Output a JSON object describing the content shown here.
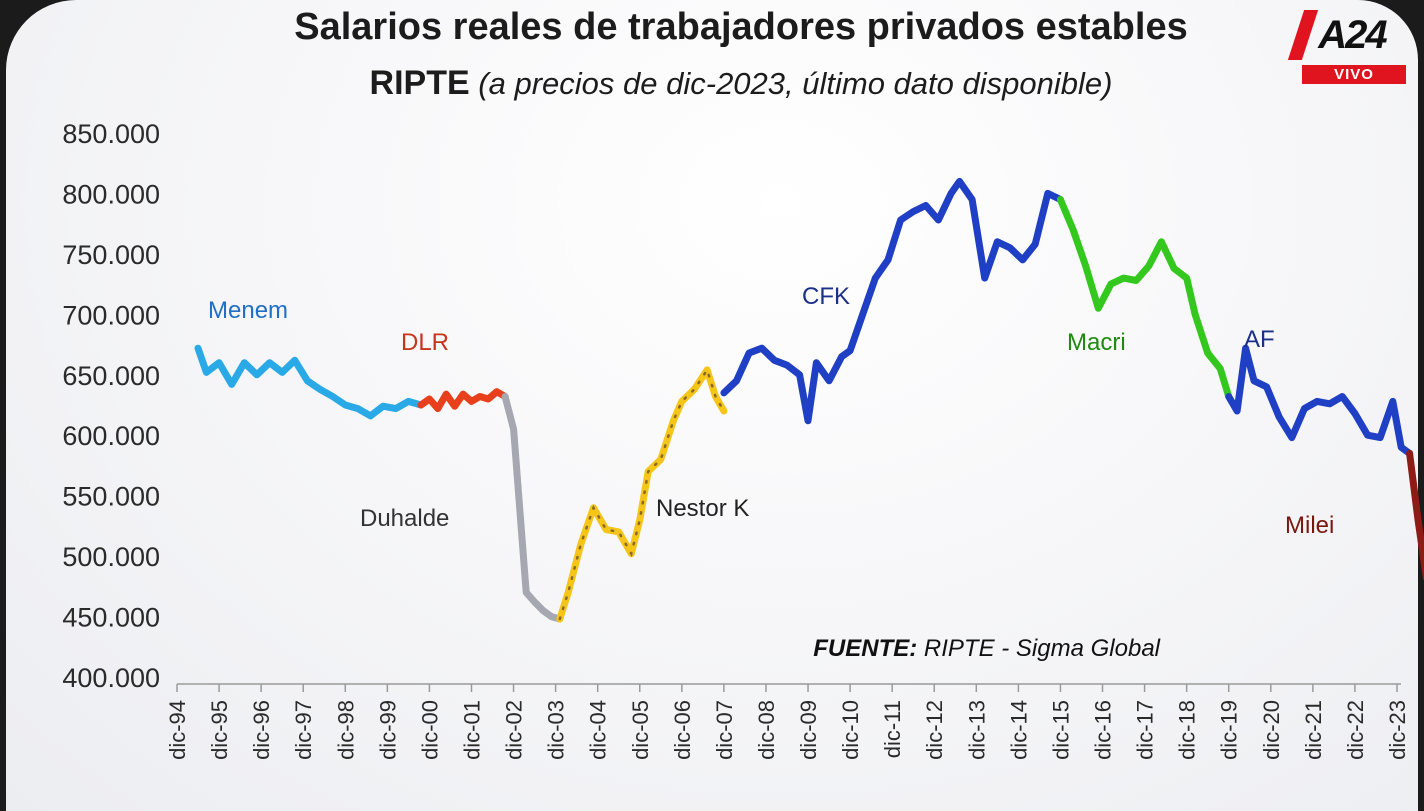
{
  "header": {
    "title": "Salarios reales de trabajadores privados estables",
    "subtitle_bold": "RIPTE",
    "subtitle_italic": "(a precios de dic-2023, último dato disponible)"
  },
  "logo": {
    "brand": "A24",
    "live_badge": "VIVO",
    "brand_color": "#e0141e"
  },
  "chart_data": {
    "type": "line",
    "title": "Salarios reales de trabajadores privados estables",
    "subtitle": "RIPTE (a precios de dic-2023, último dato disponible)",
    "source": "FUENTE: RIPTE - Sigma Global",
    "ylim": [
      400000,
      850000
    ],
    "yticks": [
      "850.000",
      "800.000",
      "750.000",
      "700.000",
      "650.000",
      "600.000",
      "550.000",
      "500.000",
      "450.000",
      "400.000"
    ],
    "ytick_values": [
      850000,
      800000,
      750000,
      700000,
      650000,
      600000,
      550000,
      500000,
      450000,
      400000
    ],
    "xlim": [
      1994,
      2023
    ],
    "xticks": [
      "dic-94",
      "dic-95",
      "dic-96",
      "dic-97",
      "dic-98",
      "dic-99",
      "dic-00",
      "dic-01",
      "dic-02",
      "dic-03",
      "dic-04",
      "dic-05",
      "dic-06",
      "dic-07",
      "dic-08",
      "dic-09",
      "dic-10",
      "dic-11",
      "dic-12",
      "dic-13",
      "dic-14",
      "dic-15",
      "dic-16",
      "dic-17",
      "dic-18",
      "dic-19",
      "dic-20",
      "dic-21",
      "dic-22",
      "dic-23"
    ],
    "grid": false,
    "series": [
      {
        "name": "Menem",
        "color": "#29a9e6",
        "style": "solid",
        "x": [
          1994.5,
          1994.7,
          1995.0,
          1995.3,
          1995.6,
          1995.9,
          1996.2,
          1996.5,
          1996.8,
          1997.1,
          1997.4,
          1997.7,
          1998.0,
          1998.3,
          1998.6,
          1998.9,
          1999.2,
          1999.5,
          1999.8
        ],
        "y": [
          672000,
          652000,
          660000,
          642000,
          660000,
          650000,
          660000,
          652000,
          662000,
          645000,
          638000,
          632000,
          625000,
          622000,
          616000,
          624000,
          622000,
          628000,
          625000
        ]
      },
      {
        "name": "DLR",
        "color": "#e8401c",
        "style": "solid",
        "x": [
          1999.8,
          2000.0,
          2000.2,
          2000.4,
          2000.6,
          2000.8,
          2001.0,
          2001.2,
          2001.4,
          2001.6,
          2001.8
        ],
        "y": [
          625000,
          630000,
          622000,
          634000,
          624000,
          634000,
          628000,
          632000,
          630000,
          636000,
          632000
        ]
      },
      {
        "name": "Duhalde",
        "color": "#a5a8b0",
        "style": "solid",
        "x": [
          2001.8,
          2002.0,
          2002.1,
          2002.2,
          2002.3,
          2002.5,
          2002.7,
          2002.9,
          2003.1
        ],
        "y": [
          632000,
          605000,
          560000,
          515000,
          470000,
          462000,
          455000,
          450000,
          448000
        ]
      },
      {
        "name": "Nestor K",
        "color": "#f5c518",
        "style": "dotted",
        "x": [
          2003.1,
          2003.3,
          2003.6,
          2003.9,
          2004.2,
          2004.5,
          2004.8,
          2005.0,
          2005.2,
          2005.5,
          2005.8,
          2006.0,
          2006.3,
          2006.6,
          2006.8,
          2007.0
        ],
        "y": [
          448000,
          470000,
          510000,
          540000,
          522000,
          520000,
          502000,
          530000,
          570000,
          580000,
          612000,
          628000,
          638000,
          654000,
          632000,
          620000
        ]
      },
      {
        "name": "CFK",
        "color": "#1f3fc4",
        "style": "solid",
        "x": [
          2007.0,
          2007.3,
          2007.6,
          2007.9,
          2008.2,
          2008.5,
          2008.8,
          2009.0,
          2009.2,
          2009.5,
          2009.8,
          2010.0,
          2010.3,
          2010.6,
          2010.9,
          2011.2,
          2011.5,
          2011.8,
          2012.1,
          2012.4,
          2012.6,
          2012.9,
          2013.2,
          2013.5,
          2013.8,
          2014.1,
          2014.4,
          2014.7,
          2015.0
        ],
        "y": [
          635000,
          645000,
          668000,
          672000,
          662000,
          658000,
          650000,
          612000,
          660000,
          645000,
          665000,
          670000,
          700000,
          730000,
          745000,
          778000,
          785000,
          790000,
          778000,
          800000,
          810000,
          795000,
          730000,
          760000,
          755000,
          745000,
          758000,
          800000,
          795000
        ]
      },
      {
        "name": "Macri",
        "color": "#34c81e",
        "style": "solid",
        "x": [
          2015.0,
          2015.3,
          2015.6,
          2015.9,
          2016.2,
          2016.5,
          2016.8,
          2017.1,
          2017.4,
          2017.7,
          2018.0,
          2018.2,
          2018.5,
          2018.8,
          2019.0
        ],
        "y": [
          795000,
          770000,
          740000,
          705000,
          725000,
          730000,
          728000,
          740000,
          760000,
          738000,
          730000,
          700000,
          668000,
          655000,
          632000
        ]
      },
      {
        "name": "AF",
        "color": "#1f3fc4",
        "style": "solid",
        "x": [
          2019.0,
          2019.2,
          2019.4,
          2019.6,
          2019.9,
          2020.2,
          2020.5,
          2020.8,
          2021.1,
          2021.4,
          2021.7,
          2022.0,
          2022.3,
          2022.6,
          2022.9,
          2023.1,
          2023.3
        ],
        "y": [
          632000,
          620000,
          672000,
          645000,
          640000,
          615000,
          598000,
          622000,
          628000,
          626000,
          632000,
          618000,
          600000,
          598000,
          628000,
          590000,
          585000
        ]
      },
      {
        "name": "Milei",
        "color": "#8e1c16",
        "style": "solid",
        "x": [
          2023.3,
          2023.5,
          2023.7
        ],
        "y": [
          585000,
          530000,
          482000
        ]
      }
    ],
    "annotations": [
      {
        "text": "Menem",
        "color": "#1f6fc4"
      },
      {
        "text": "DLR",
        "color": "#c8341c"
      },
      {
        "text": "Duhalde",
        "color": "#333333"
      },
      {
        "text": "Nestor K",
        "color": "#222222"
      },
      {
        "text": "CFK",
        "color": "#1a2f88"
      },
      {
        "text": "Macri",
        "color": "#1e8a10"
      },
      {
        "text": "AF",
        "color": "#1a2f88"
      },
      {
        "text": "Milei",
        "color": "#7a1610"
      }
    ]
  }
}
